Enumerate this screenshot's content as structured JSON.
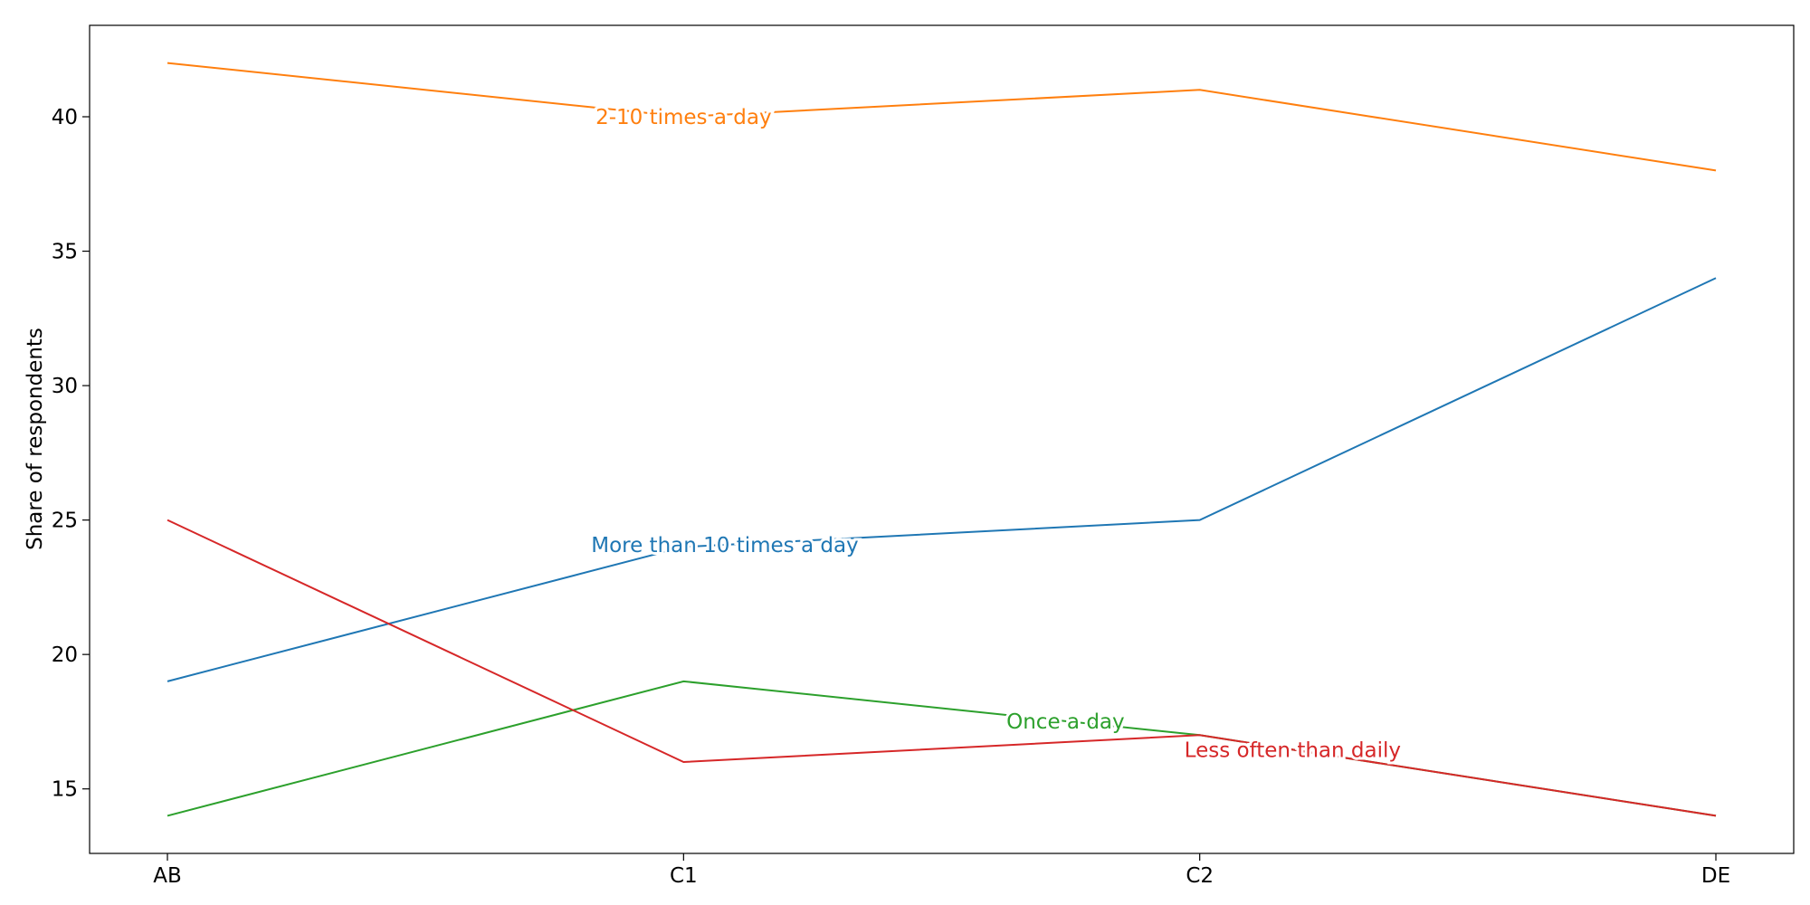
{
  "chart_data": {
    "type": "line",
    "ylabel": "Share of respondents",
    "xlabel": "",
    "title": "",
    "categories": [
      "AB",
      "C1",
      "C2",
      "DE"
    ],
    "ylim": [
      12.6,
      43.4
    ],
    "yticks": [
      15,
      20,
      25,
      30,
      35,
      40
    ],
    "legend": "inline labels on lines",
    "grid": false,
    "series": [
      {
        "name": "More than 10 times a day",
        "color": "#1f77b4",
        "values": [
          19,
          24,
          25,
          34
        ]
      },
      {
        "name": "2-10 times a day",
        "color": "#ff7f0e",
        "values": [
          42,
          40,
          41,
          38
        ]
      },
      {
        "name": "Once a day",
        "color": "#2ca02c",
        "values": [
          14,
          19,
          17,
          14
        ]
      },
      {
        "name": "Less often than daily",
        "color": "#d62728",
        "values": [
          25,
          16,
          17,
          14
        ]
      }
    ]
  }
}
